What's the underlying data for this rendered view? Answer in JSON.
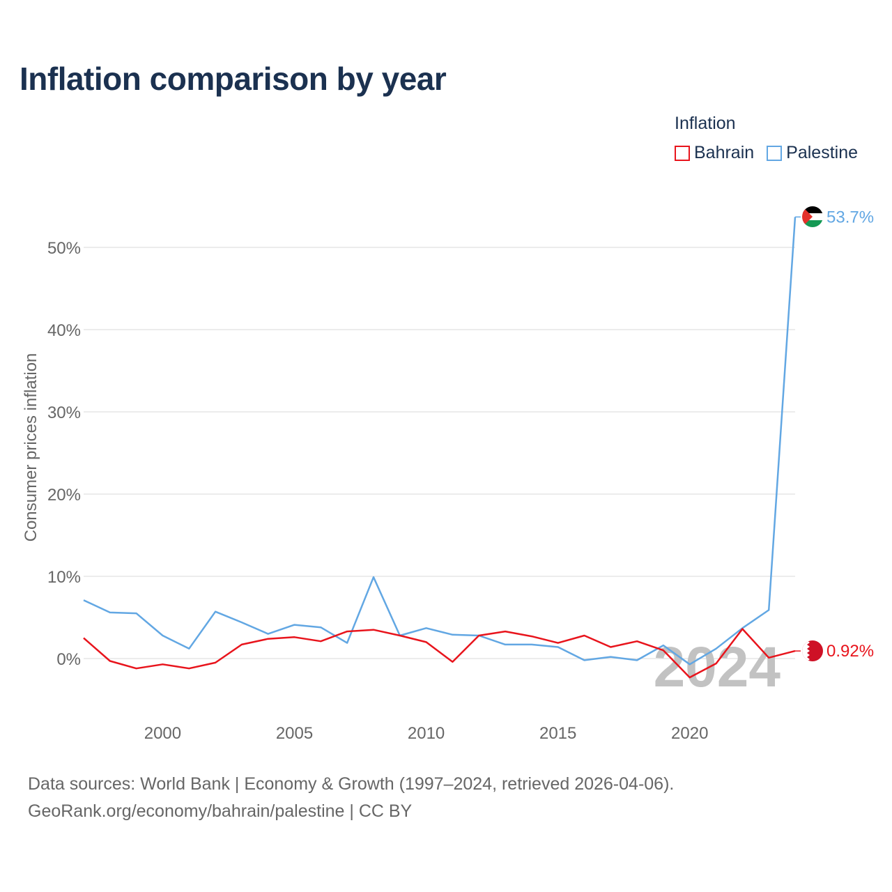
{
  "title": "Inflation comparison by year",
  "legend": {
    "title": "Inflation",
    "items": [
      {
        "name": "Bahrain",
        "color": "#e8141c"
      },
      {
        "name": "Palestine",
        "color": "#62a7e3"
      }
    ]
  },
  "watermark_year": "2024",
  "footer": {
    "line1": "Data sources: World Bank | Economy & Growth (1997–2024, retrieved 2026-04-06).",
    "line2": "GeoRank.org/economy/bahrain/palestine | CC BY"
  },
  "chart_data": {
    "type": "line",
    "title": "Inflation comparison by year",
    "xlabel": "",
    "ylabel": "Consumer prices inflation",
    "xlim": [
      1997,
      2024
    ],
    "ylim": [
      -6,
      56
    ],
    "x_ticks": [
      2000,
      2005,
      2010,
      2015,
      2020
    ],
    "y_ticks": [
      0,
      10,
      20,
      30,
      40,
      50
    ],
    "y_tick_labels": [
      "0%",
      "10%",
      "20%",
      "30%",
      "40%",
      "50%"
    ],
    "grid": true,
    "legend_position": "top-right",
    "x": [
      1997,
      1998,
      1999,
      2000,
      2001,
      2002,
      2003,
      2004,
      2005,
      2006,
      2007,
      2008,
      2009,
      2010,
      2011,
      2012,
      2013,
      2014,
      2015,
      2016,
      2017,
      2018,
      2019,
      2020,
      2021,
      2022,
      2023,
      2024
    ],
    "series": [
      {
        "name": "Bahrain",
        "color": "#e8141c",
        "end_label": "0.92%",
        "values": [
          2.5,
          -0.3,
          -1.2,
          -0.7,
          -1.2,
          -0.5,
          1.7,
          2.4,
          2.6,
          2.1,
          3.3,
          3.5,
          2.8,
          2.0,
          -0.4,
          2.8,
          3.3,
          2.7,
          1.9,
          2.8,
          1.4,
          2.1,
          1.0,
          -2.3,
          -0.6,
          3.6,
          0.1,
          0.92
        ]
      },
      {
        "name": "Palestine",
        "color": "#62a7e3",
        "end_label": "53.7%",
        "values": [
          7.1,
          5.6,
          5.5,
          2.8,
          1.2,
          5.7,
          4.4,
          3.0,
          4.1,
          3.8,
          1.9,
          9.9,
          2.8,
          3.7,
          2.9,
          2.8,
          1.7,
          1.7,
          1.4,
          -0.2,
          0.2,
          -0.2,
          1.6,
          -0.7,
          1.2,
          3.7,
          5.9,
          53.7
        ]
      }
    ]
  }
}
